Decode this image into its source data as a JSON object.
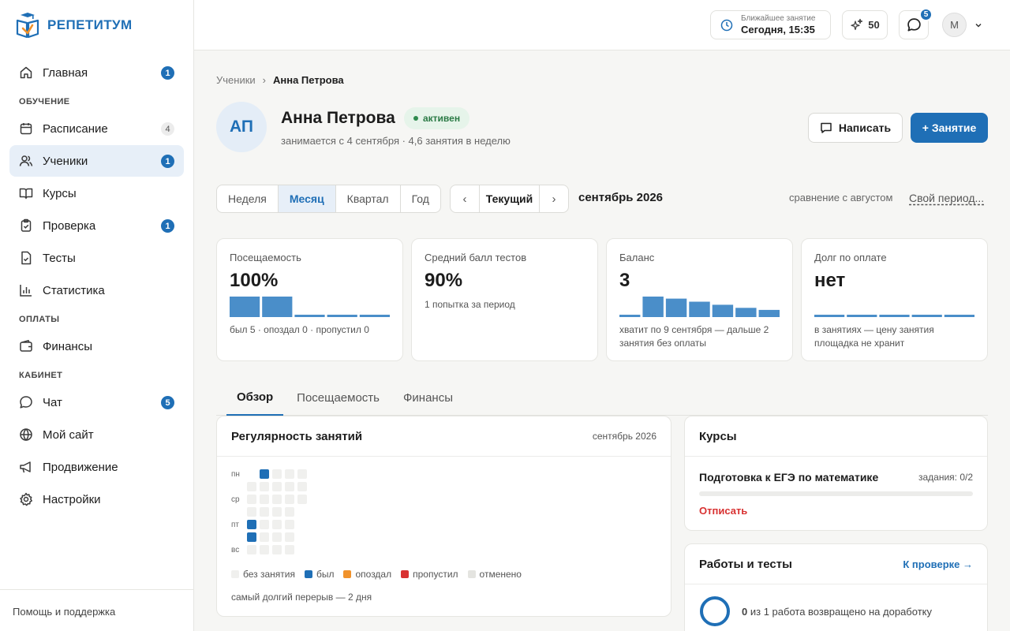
{
  "brand": {
    "name": "РЕПЕТИТУМ"
  },
  "sidebar": {
    "items": [
      {
        "label": "Главная",
        "badge": "1",
        "icon": "home-icon"
      },
      {
        "section": "ОБУЧЕНИЕ"
      },
      {
        "label": "Расписание",
        "badge": "4",
        "icon": "calendar-icon"
      },
      {
        "label": "Ученики",
        "badge": "1",
        "icon": "users-icon",
        "active": true
      },
      {
        "label": "Курсы",
        "icon": "book-icon"
      },
      {
        "label": "Проверка",
        "badge": "1",
        "icon": "clipboard-icon"
      },
      {
        "label": "Тесты",
        "icon": "test-icon"
      },
      {
        "label": "Статистика",
        "icon": "chart-icon"
      },
      {
        "section": "ОПЛАТЫ"
      },
      {
        "label": "Финансы",
        "icon": "wallet-icon"
      },
      {
        "section": "КАБИНЕТ"
      },
      {
        "label": "Чат",
        "badge": "5",
        "icon": "chat-icon"
      },
      {
        "label": "Мой сайт",
        "icon": "globe-icon"
      },
      {
        "label": "Продвижение",
        "icon": "megaphone-icon"
      },
      {
        "label": "Настройки",
        "icon": "gear-icon"
      }
    ],
    "footer": "Помощь и поддержка"
  },
  "topbar": {
    "next_lesson_caption": "Ближайшее занятие",
    "next_lesson_value": "Сегодня, 15:35",
    "sparks": "50",
    "chat_badge": "5",
    "user_initial": "М"
  },
  "breadcrumb": {
    "parent": "Ученики",
    "sep": "›",
    "current": "Анна Петрова"
  },
  "student": {
    "initials": "АП",
    "name": "Анна Петрова",
    "status": "активен",
    "subtitle": "занимается с 4 сентября · 4,6 занятия в неделю"
  },
  "actions": {
    "write": "Написать",
    "add_lesson": "+ Занятие"
  },
  "period": {
    "options": [
      "Неделя",
      "Месяц",
      "Квартал",
      "Год"
    ],
    "selected": "Месяц",
    "prev": "‹",
    "current": "Текущий",
    "next": "›",
    "label": "сентябрь 2026",
    "compare": "сравнение с августом",
    "custom": "Свой период..."
  },
  "stats": [
    {
      "label": "Посещаемость",
      "value": "100%",
      "note": "был 5 · опоздал 0 · пропустил 0",
      "bars": [
        1,
        1,
        0,
        0,
        0
      ]
    },
    {
      "label": "Средний балл тестов",
      "value": "90%",
      "note": "1 попытка за период"
    },
    {
      "label": "Баланс",
      "value": "3",
      "note": "хватит по 9 сентября — дальше 2 занятия без оплаты",
      "bars": [
        0.05,
        1,
        0.9,
        0.75,
        0.6,
        0.45,
        0.35
      ]
    },
    {
      "label": "Долг по оплате",
      "value": "нет",
      "note": "в занятиях — цену занятия площадка не хранит",
      "bars": [
        0,
        0,
        0,
        0,
        0
      ]
    }
  ],
  "tabs": [
    "Обзор",
    "Посещаемость",
    "Финансы"
  ],
  "regularity": {
    "title": "Регулярность занятий",
    "period": "сентябрь 2026",
    "day_labels": [
      "пн",
      "ср",
      "пт",
      "вс"
    ],
    "legend": [
      {
        "label": "без занятия",
        "color": "#f0f0ee"
      },
      {
        "label": "был",
        "color": "#1f6fb6"
      },
      {
        "label": "опоздал",
        "color": "#f0922b"
      },
      {
        "label": "пропустил",
        "color": "#d83131"
      },
      {
        "label": "отменено",
        "color": "#e4e4e0"
      }
    ],
    "gap_note": "самый долгий перерыв — 2 дня"
  },
  "courses": {
    "title": "Курсы",
    "course_name": "Подготовка к ЕГЭ по математике",
    "tasks": "задания: 0/2",
    "progress": 0,
    "unsubscribe": "Отписать"
  },
  "works": {
    "title": "Работы и тесты",
    "link": "К проверке →",
    "count": "0",
    "summary": "из 1 работа возвращено на доработку"
  },
  "colors": {
    "accent": "#1f6fb6",
    "bar": "#4a8ec9",
    "success": "#2f8a4e",
    "danger": "#d83131"
  }
}
